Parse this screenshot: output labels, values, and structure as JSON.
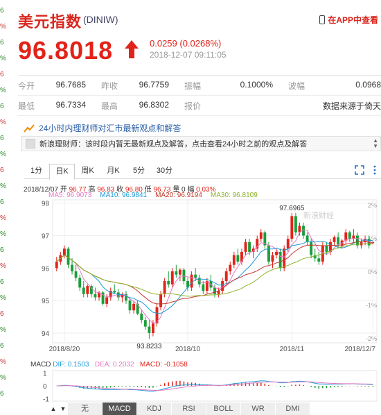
{
  "left_strip": [
    "6",
    "%",
    "6",
    "%",
    "6",
    "%",
    "6",
    "%",
    "6",
    "%",
    "6",
    "%",
    "6",
    "%",
    "%",
    "6",
    "%",
    "6",
    "%",
    "6",
    "%",
    "6",
    "%",
    "%",
    "6"
  ],
  "header": {
    "title": "美元指数",
    "code": "(DINIW)",
    "app_link": "在APP中查看"
  },
  "quote": {
    "price": "96.8018",
    "change": "0.0259 (0.0268%)",
    "timestamp": "2018-12-07 09:11:05",
    "up_color": "#e2231a"
  },
  "stats": [
    [
      {
        "label": "今开",
        "value": "96.7685"
      },
      {
        "label": "昨收",
        "value": "96.7759"
      },
      {
        "label": "振幅",
        "value": "0.1000%"
      },
      {
        "label": "波幅",
        "value": "0.0968"
      }
    ],
    [
      {
        "label": "最低",
        "value": "96.7334"
      },
      {
        "label": "最高",
        "value": "96.8302"
      },
      {
        "label": "报价",
        "value": ""
      },
      {
        "label": "",
        "value": "数据来源于倚天"
      }
    ]
  ],
  "news": {
    "headline": "24小时内理财师对汇市最新观点和解答",
    "item": "新浪理财师：该时段内暂无最新观点及解答，点击查看24小时之前的观点及解答"
  },
  "tabs": [
    "1分",
    "日K",
    "周K",
    "月K",
    "5分",
    "30分"
  ],
  "selected_tab": "日K",
  "ohlc_info": {
    "date": "2018/12/07",
    "open_label": "开",
    "open": "96.77",
    "high_label": "高",
    "high": "96.83",
    "close_label": "收",
    "close": "96.80",
    "low_label": "低",
    "low": "96.73",
    "vol_label": "量",
    "vol": "0",
    "amp_label": "幅",
    "amp": "0.03%"
  },
  "ma_info": [
    {
      "label": "MA5: 96.9073",
      "color": "#e377c2"
    },
    {
      "label": "MA10: 96.9841",
      "color": "#1f9bd6"
    },
    {
      "label": "MA20: 96.9194",
      "color": "#c0392b"
    },
    {
      "label": "MA30: 96.8109",
      "color": "#8cb32a"
    }
  ],
  "chart_data": [
    {
      "type": "candlestick",
      "series_name": "美元指数 日K",
      "x_ticks": [
        "2018/8/20",
        "2018/10",
        "2018/11",
        "2018/12/7"
      ],
      "y_ticks": [
        "98",
        "97",
        "96",
        "95",
        "94"
      ],
      "y_range": [
        93.7,
        98.1
      ],
      "pct_ticks": [
        "2%",
        "1%",
        "0%",
        "-1%",
        "-2%"
      ],
      "annotations": [
        {
          "text": "97.6965",
          "value": 97.6965
        },
        {
          "text": "93.8233",
          "value": 93.8233
        }
      ],
      "watermark": "新浪财经",
      "candles": [
        [
          96.0,
          96.35,
          95.9,
          96.2
        ],
        [
          96.2,
          96.5,
          96.1,
          96.4
        ],
        [
          96.4,
          96.7,
          96.3,
          96.6
        ],
        [
          96.6,
          96.65,
          96.0,
          96.1
        ],
        [
          96.1,
          96.3,
          95.8,
          95.9
        ],
        [
          95.9,
          96.1,
          95.6,
          95.7
        ],
        [
          95.7,
          95.8,
          95.3,
          95.4
        ],
        [
          95.4,
          95.6,
          95.1,
          95.2
        ],
        [
          95.2,
          95.5,
          95.1,
          95.45
        ],
        [
          95.45,
          95.5,
          95.1,
          95.2
        ],
        [
          95.2,
          95.4,
          95.0,
          95.1
        ],
        [
          95.1,
          95.3,
          95.0,
          95.25
        ],
        [
          95.25,
          95.3,
          94.85,
          94.9
        ],
        [
          94.9,
          95.2,
          94.8,
          95.1
        ],
        [
          95.1,
          95.4,
          95.0,
          95.3
        ],
        [
          95.3,
          95.5,
          95.2,
          95.25
        ],
        [
          95.25,
          95.35,
          95.0,
          95.1
        ],
        [
          95.1,
          95.25,
          94.95,
          95.2
        ],
        [
          95.2,
          95.3,
          94.9,
          95.0
        ],
        [
          95.0,
          95.1,
          94.6,
          94.7
        ],
        [
          94.7,
          95.0,
          94.6,
          94.9
        ],
        [
          94.9,
          95.0,
          94.55,
          94.6
        ],
        [
          94.6,
          94.7,
          94.3,
          94.4
        ],
        [
          94.4,
          94.5,
          94.1,
          94.2
        ],
        [
          94.2,
          94.4,
          93.82,
          94.0
        ],
        [
          94.0,
          94.4,
          93.9,
          94.3
        ],
        [
          94.3,
          94.9,
          94.2,
          94.8
        ],
        [
          94.8,
          95.3,
          94.7,
          95.2
        ],
        [
          95.2,
          95.7,
          95.1,
          95.6
        ],
        [
          95.6,
          95.9,
          95.4,
          95.5
        ],
        [
          95.5,
          96.0,
          95.4,
          95.9
        ],
        [
          95.9,
          96.1,
          95.7,
          95.8
        ],
        [
          95.8,
          96.0,
          95.6,
          95.95
        ],
        [
          95.95,
          96.0,
          95.5,
          95.6
        ],
        [
          95.6,
          95.7,
          95.3,
          95.4
        ],
        [
          95.4,
          95.9,
          95.3,
          95.8
        ],
        [
          95.8,
          96.0,
          95.6,
          95.7
        ],
        [
          95.7,
          95.8,
          95.4,
          95.5
        ],
        [
          95.5,
          95.6,
          95.2,
          95.3
        ],
        [
          95.3,
          95.7,
          95.2,
          95.6
        ],
        [
          95.6,
          95.8,
          95.3,
          95.4
        ],
        [
          95.4,
          95.5,
          95.1,
          95.2
        ],
        [
          95.2,
          95.4,
          95.1,
          95.3
        ],
        [
          95.3,
          95.7,
          95.2,
          95.6
        ],
        [
          95.6,
          96.0,
          95.5,
          95.9
        ],
        [
          95.9,
          96.2,
          95.8,
          96.1
        ],
        [
          96.1,
          96.5,
          96.0,
          96.4
        ],
        [
          96.4,
          96.6,
          96.1,
          96.2
        ],
        [
          96.2,
          96.6,
          96.1,
          96.5
        ],
        [
          96.5,
          96.9,
          96.4,
          96.8
        ],
        [
          96.8,
          96.9,
          96.4,
          96.5
        ],
        [
          96.5,
          96.7,
          96.3,
          96.6
        ],
        [
          96.6,
          97.0,
          96.5,
          96.9
        ],
        [
          96.9,
          97.2,
          96.8,
          97.1
        ],
        [
          97.1,
          97.15,
          96.6,
          96.7
        ],
        [
          96.7,
          96.8,
          96.1,
          96.2
        ],
        [
          96.2,
          96.5,
          96.0,
          96.4
        ],
        [
          96.4,
          96.6,
          96.3,
          96.5
        ],
        [
          96.5,
          96.6,
          95.9,
          96.0
        ],
        [
          96.0,
          96.7,
          95.9,
          96.6
        ],
        [
          96.6,
          97.0,
          96.5,
          96.9
        ],
        [
          96.9,
          97.6965,
          96.8,
          97.6
        ],
        [
          97.6,
          97.7,
          97.0,
          97.1
        ],
        [
          97.1,
          97.4,
          97.0,
          97.3
        ],
        [
          97.3,
          97.4,
          96.9,
          97.0
        ],
        [
          97.0,
          97.1,
          96.7,
          96.8
        ],
        [
          96.8,
          96.9,
          96.3,
          96.4
        ],
        [
          96.4,
          96.6,
          96.2,
          96.3
        ],
        [
          96.3,
          96.5,
          96.1,
          96.2
        ],
        [
          96.2,
          96.8,
          96.1,
          96.7
        ],
        [
          96.7,
          96.8,
          96.4,
          96.5
        ],
        [
          96.5,
          96.9,
          96.4,
          96.8
        ],
        [
          96.8,
          97.0,
          96.7,
          96.95
        ],
        [
          96.95,
          97.1,
          96.6,
          96.7
        ],
        [
          96.7,
          96.9,
          96.6,
          96.85
        ],
        [
          96.85,
          97.2,
          96.75,
          97.1
        ],
        [
          97.1,
          97.15,
          96.8,
          96.9
        ],
        [
          96.9,
          97.2,
          96.8,
          97.0
        ],
        [
          97.0,
          97.1,
          96.6,
          96.7
        ],
        [
          96.7,
          96.9,
          96.6,
          96.8
        ],
        [
          96.8,
          97.0,
          96.7,
          96.9
        ],
        [
          96.9,
          97.0,
          96.6,
          96.7
        ],
        [
          96.77,
          96.83,
          96.73,
          96.8
        ]
      ]
    },
    {
      "type": "macd",
      "y_ticks": [
        "1",
        "0",
        "-1"
      ],
      "y_range": [
        -1.2,
        1.2
      ]
    }
  ],
  "macd": {
    "prefix": "MACD",
    "dif": "DIF: 0.1503",
    "dea": "DEA: 0.2032",
    "macd": "MACD: -0.1058",
    "dif_color": "#1f9bd6",
    "dea_color": "#e377c2",
    "macd_color": "#e2231a"
  },
  "bottom_tabs": [
    "无",
    "MACD",
    "KDJ",
    "RSI",
    "BOLL",
    "WR",
    "DMI"
  ],
  "selected_bottom_tab": "MACD"
}
